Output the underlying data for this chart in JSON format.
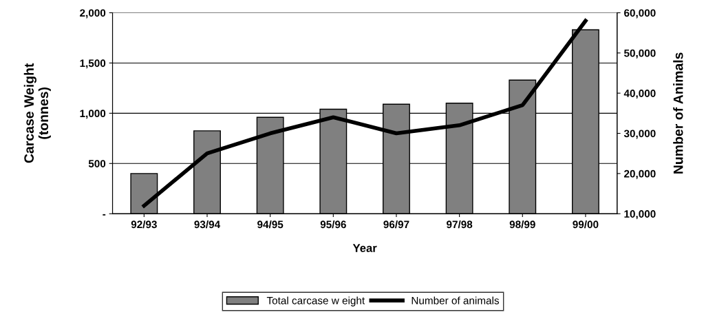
{
  "chart_data": {
    "type": "bar",
    "xlabel": "Year",
    "ylabel": "Carcase Weight\n(tonnes)",
    "y2label": "Number of Animals",
    "categories": [
      "92/93",
      "93/94",
      "94/95",
      "95/96",
      "96/97",
      "97/98",
      "98/99",
      "99/00"
    ],
    "series": [
      {
        "name": "Total carcase w eight",
        "color": "#808080",
        "values": [
          400,
          825,
          960,
          1040,
          1090,
          1100,
          1330,
          1830
        ]
      },
      {
        "name": "Number of animals",
        "type": "line",
        "axis": "y2",
        "color": "#000000",
        "values": [
          12000,
          25000,
          30000,
          34000,
          30000,
          32000,
          37000,
          58000
        ]
      }
    ],
    "ylim": [
      0,
      2000
    ],
    "yticks": [
      {
        "value": 0,
        "label": "-"
      },
      {
        "value": 500,
        "label": "500"
      },
      {
        "value": 1000,
        "label": "1,000"
      },
      {
        "value": 1500,
        "label": "1,500"
      },
      {
        "value": 2000,
        "label": "2,000"
      }
    ],
    "y2lim": [
      10000,
      60000
    ],
    "y2ticks": [
      {
        "value": 10000,
        "label": "10,000"
      },
      {
        "value": 20000,
        "label": "20,000"
      },
      {
        "value": 30000,
        "label": "30,000"
      },
      {
        "value": 40000,
        "label": "40,000"
      },
      {
        "value": 50000,
        "label": "50,000"
      },
      {
        "value": 60000,
        "label": "60,000"
      }
    ],
    "grid": "y",
    "legend": "bottom",
    "marker": "none",
    "line_style": "solid"
  }
}
